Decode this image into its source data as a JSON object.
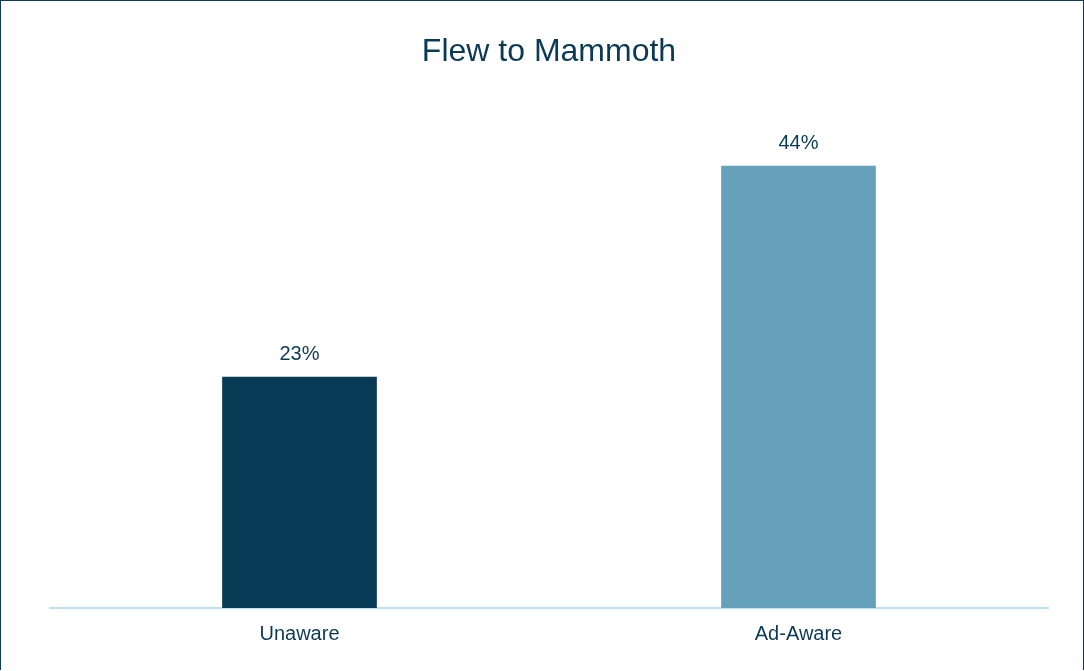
{
  "chart_data": {
    "type": "bar",
    "title": "Flew to Mammoth",
    "categories": [
      "Unaware",
      "Ad-Aware"
    ],
    "values": [
      23,
      44
    ],
    "colors": [
      "#063a55",
      "#66a1bc"
    ],
    "value_labels": [
      "23%",
      "44%"
    ],
    "grid": false,
    "legend": false
  }
}
